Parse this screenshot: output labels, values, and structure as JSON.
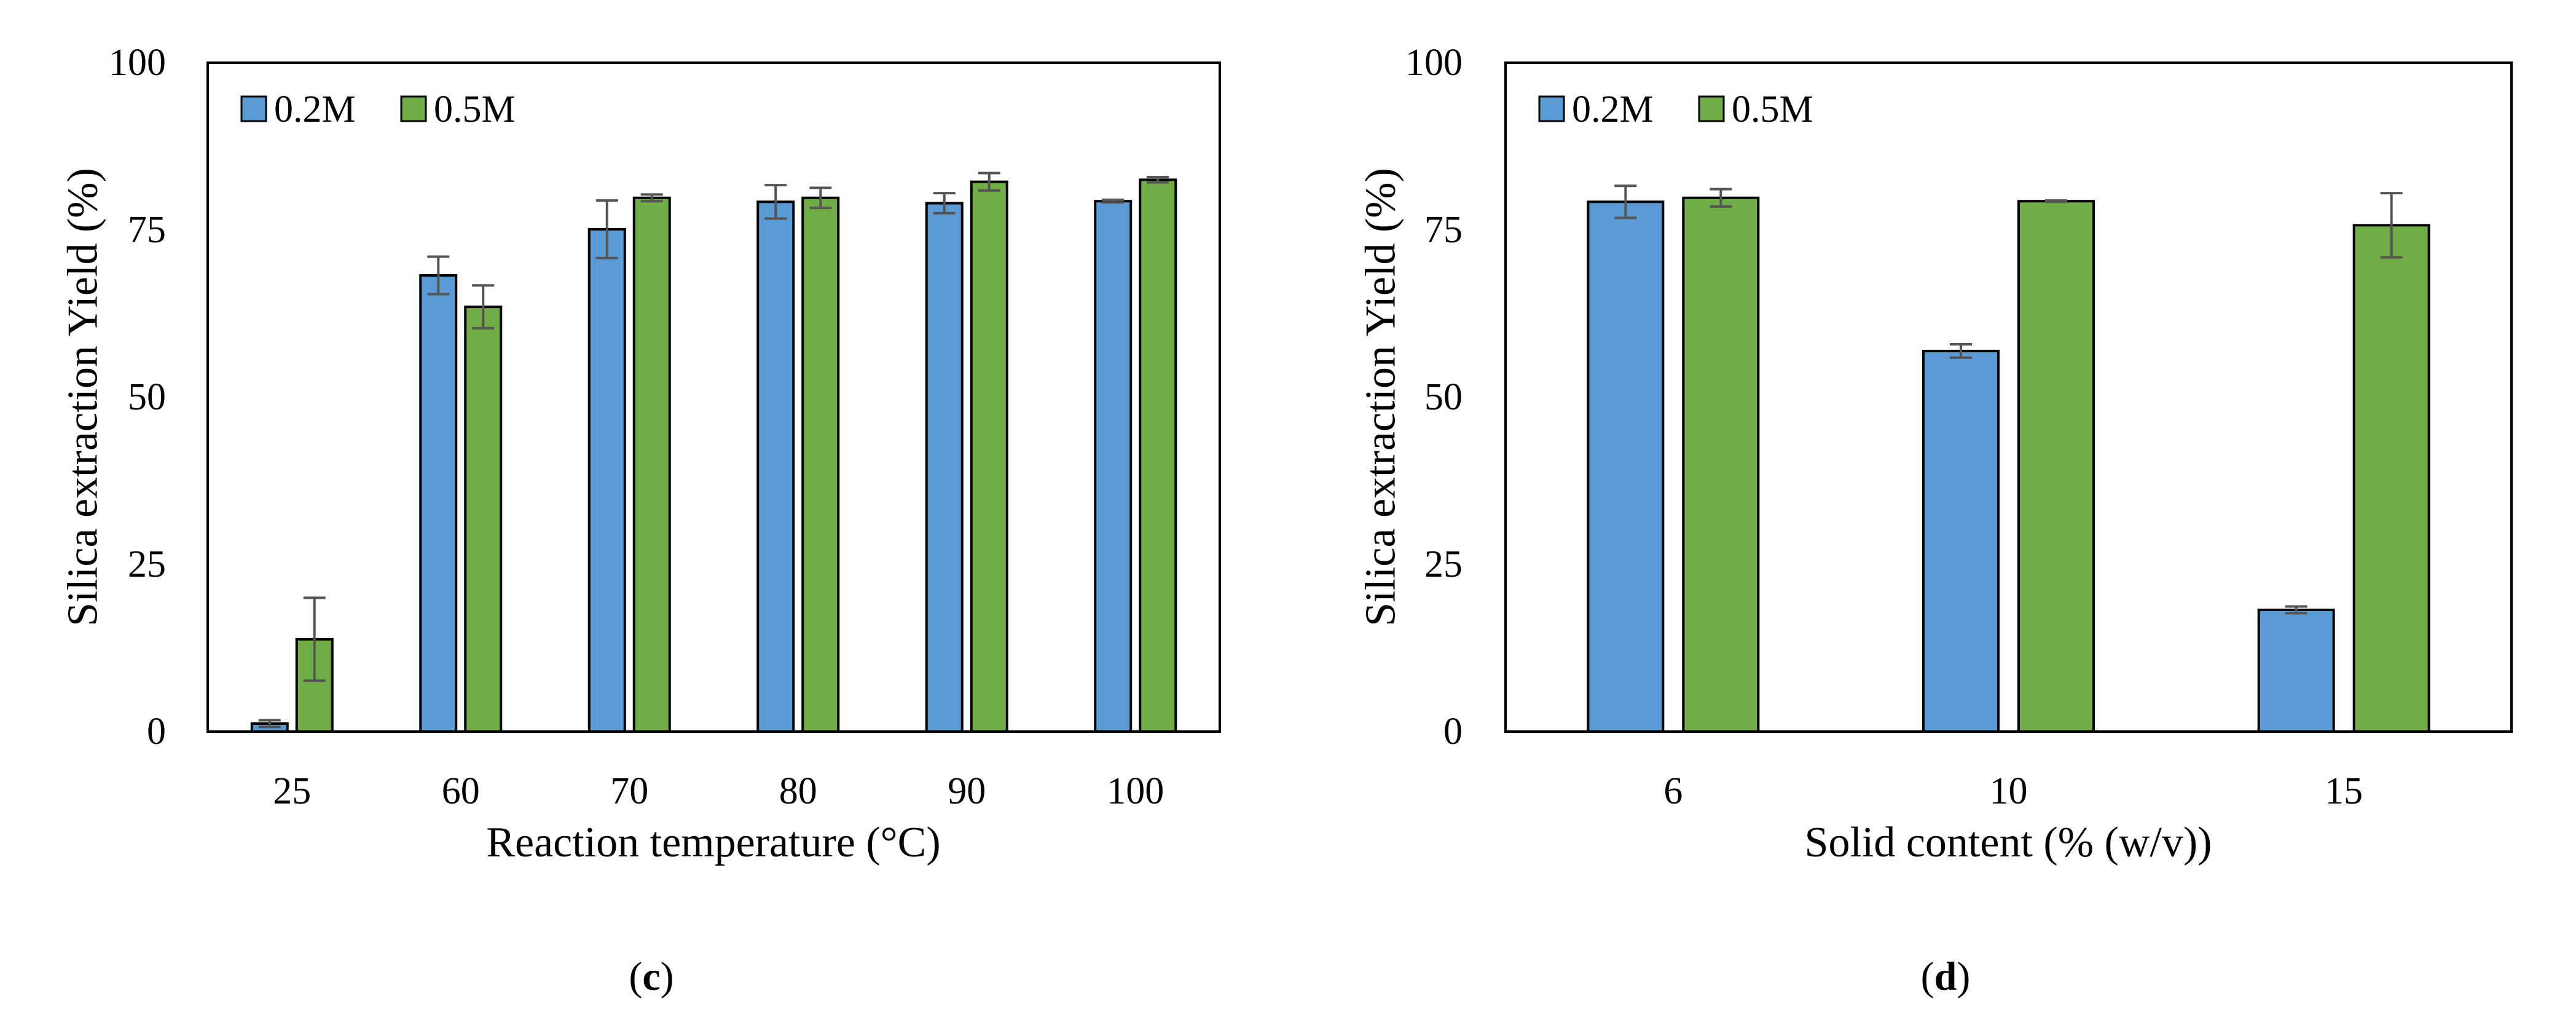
{
  "chart_data": [
    {
      "panel_label": "c",
      "type": "bar",
      "title": "",
      "xlabel": "Reaction temperature (°C)",
      "ylabel": "Silica extraction Yield (%)",
      "ylim": [
        0,
        100
      ],
      "yticks": [
        "0",
        "25",
        "50",
        "75",
        "100"
      ],
      "categories": [
        "25",
        "60",
        "70",
        "80",
        "90",
        "100"
      ],
      "legend_position": "top-left",
      "series": [
        {
          "name": "0.2M",
          "color": "#5B9BD5",
          "values": [
            1.2,
            68.2,
            75.1,
            79.2,
            79.0,
            79.3
          ],
          "errors": [
            0.5,
            2.8,
            4.3,
            2.5,
            1.5,
            0.2
          ]
        },
        {
          "name": "0.5M",
          "color": "#70AD47",
          "values": [
            13.8,
            63.5,
            79.8,
            79.8,
            82.2,
            82.5
          ],
          "errors": [
            6.2,
            3.2,
            0.5,
            1.5,
            1.3,
            0.4
          ]
        }
      ]
    },
    {
      "panel_label": "d",
      "type": "bar",
      "title": "",
      "xlabel": "Solid content (% (w/v))",
      "ylabel": "Silica extraction Yield (%)",
      "ylim": [
        0,
        100
      ],
      "yticks": [
        "0",
        "25",
        "50",
        "75",
        "100"
      ],
      "categories": [
        "6",
        "10",
        "15"
      ],
      "legend_position": "top-left",
      "series": [
        {
          "name": "0.2M",
          "color": "#5B9BD5",
          "values": [
            79.2,
            56.9,
            18.2
          ],
          "errors": [
            2.4,
            1.0,
            0.5
          ]
        },
        {
          "name": "0.5M",
          "color": "#70AD47",
          "values": [
            79.8,
            79.3,
            75.7
          ],
          "errors": [
            1.3,
            0.1,
            4.8
          ]
        }
      ]
    }
  ]
}
